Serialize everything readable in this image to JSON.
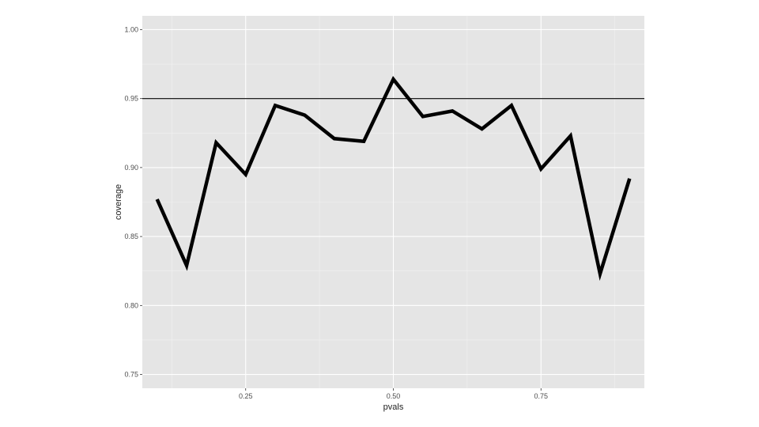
{
  "chart_data": {
    "type": "line",
    "xlabel": "pvals",
    "ylabel": "coverage",
    "xlim": [
      0.075,
      0.925
    ],
    "ylim": [
      0.74,
      1.01
    ],
    "x_ticks": [
      0.25,
      0.5,
      0.75
    ],
    "x_tick_labels": [
      "0.25",
      "0.50",
      "0.75"
    ],
    "y_ticks": [
      0.75,
      0.8,
      0.85,
      0.9,
      0.95,
      1.0
    ],
    "y_tick_labels": [
      "0.75",
      "0.80",
      "0.85",
      "0.90",
      "0.95",
      "1.00"
    ],
    "grid": true,
    "reference_line": {
      "y": 0.95,
      "color": "#000000"
    },
    "series": [
      {
        "color": "#000000",
        "x": [
          0.1,
          0.15,
          0.2,
          0.25,
          0.3,
          0.35,
          0.4,
          0.45,
          0.5,
          0.55,
          0.6,
          0.65,
          0.7,
          0.75,
          0.8,
          0.85,
          0.9
        ],
        "values": [
          0.877,
          0.829,
          0.918,
          0.895,
          0.945,
          0.938,
          0.921,
          0.919,
          0.964,
          0.937,
          0.941,
          0.928,
          0.945,
          0.899,
          0.923,
          0.823,
          0.892
        ]
      }
    ],
    "colors": {
      "panel_background": "#e5e5e5",
      "grid_major": "#ffffff",
      "grid_minor": "#f2f2f2"
    }
  }
}
